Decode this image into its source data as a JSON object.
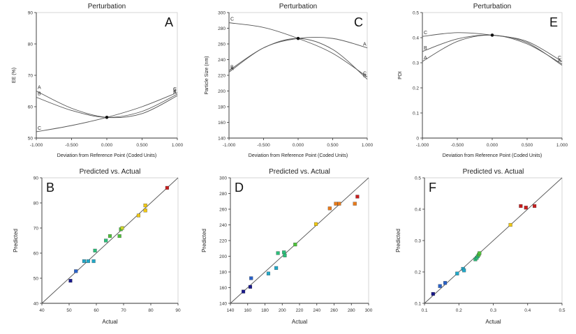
{
  "colors": {
    "axis": "#333333",
    "curve": "#555555",
    "fit_line": "#555555",
    "point_scale": [
      "#1a1a8c",
      "#2a62c8",
      "#22a8c8",
      "#2bbf7a",
      "#4ec23a",
      "#c8d22a",
      "#f0c814",
      "#e87a1a",
      "#c81e1e"
    ]
  },
  "chart_data": [
    {
      "id": "A",
      "type": "line",
      "title": "Perturbation",
      "panel_letter": "A",
      "xlabel": "Deviation from Reference Point (Coded Units)",
      "ylabel": "EE (%)",
      "xlim": [
        -1,
        1
      ],
      "ylim": [
        50,
        90
      ],
      "xticks": [
        -1,
        -0.5,
        0,
        0.5,
        1
      ],
      "xtick_labels": [
        "-1.000",
        "-0.500",
        "0.000",
        "0.500",
        "1.000"
      ],
      "yticks": [
        50,
        60,
        70,
        80,
        90
      ],
      "ytick_labels": [
        "50",
        "60",
        "70",
        "80",
        "90"
      ],
      "reference_point": [
        0,
        56.6
      ],
      "series": [
        {
          "name": "A",
          "x": [
            -1,
            -0.5,
            0,
            0.5,
            1
          ],
          "y": [
            65.0,
            59.5,
            56.6,
            57.8,
            63.5
          ]
        },
        {
          "name": "B",
          "x": [
            -1,
            -0.5,
            0,
            0.5,
            1
          ],
          "y": [
            63.0,
            58.8,
            56.6,
            58.5,
            64.0
          ]
        },
        {
          "name": "C",
          "x": [
            -1,
            -0.5,
            0,
            0.5,
            1
          ],
          "y": [
            52.0,
            54.0,
            56.6,
            60.0,
            64.5
          ]
        }
      ],
      "label_positions": [
        {
          "name": "A",
          "end": "left"
        },
        {
          "name": "B",
          "end": "left"
        },
        {
          "name": "C",
          "end": "left"
        },
        {
          "name": "C",
          "end": "right"
        },
        {
          "name": "B",
          "end": "right"
        },
        {
          "name": "A",
          "end": "right"
        }
      ]
    },
    {
      "id": "C",
      "type": "line",
      "title": "Perturbation",
      "panel_letter": "C",
      "xlabel": "Deviation from Reference Point (Coded Units)",
      "ylabel": "Particle Size (nm)",
      "xlim": [
        -1,
        1
      ],
      "ylim": [
        140,
        300
      ],
      "xticks": [
        -1,
        -0.5,
        0,
        0.5,
        1
      ],
      "xtick_labels": [
        "-1.000",
        "-0.500",
        "0.000",
        "0.500",
        "1.000"
      ],
      "yticks": [
        140,
        160,
        180,
        200,
        220,
        240,
        260,
        280,
        300
      ],
      "ytick_labels": [
        "140",
        "160",
        "180",
        "200",
        "220",
        "240",
        "260",
        "280",
        "300"
      ],
      "reference_point": [
        0,
        267
      ],
      "series": [
        {
          "name": "A",
          "x": [
            -1,
            -0.5,
            0,
            0.5,
            1
          ],
          "y": [
            224,
            255,
            267,
            267,
            255
          ]
        },
        {
          "name": "B",
          "x": [
            -1,
            -0.5,
            0,
            0.5,
            1
          ],
          "y": [
            226,
            255,
            267,
            253,
            215
          ]
        },
        {
          "name": "C",
          "x": [
            -1,
            -0.5,
            0,
            0.5,
            1
          ],
          "y": [
            287,
            281,
            267,
            248,
            218
          ]
        }
      ],
      "label_positions": [
        {
          "name": "C",
          "end": "left"
        },
        {
          "name": "B",
          "end": "left"
        },
        {
          "name": "A",
          "end": "left"
        },
        {
          "name": "A",
          "end": "right"
        },
        {
          "name": "C",
          "end": "right"
        },
        {
          "name": "B",
          "end": "right"
        }
      ]
    },
    {
      "id": "E",
      "type": "line",
      "title": "Perturbation",
      "panel_letter": "E",
      "xlabel": "Deviation from Reference Point (Coded Units)",
      "ylabel": "PDI",
      "xlim": [
        -1,
        1
      ],
      "ylim": [
        0.0,
        0.5
      ],
      "xticks": [
        -1,
        -0.5,
        0,
        0.5,
        1
      ],
      "xtick_labels": [
        "-1.000",
        "-0.500",
        "0.000",
        "0.500",
        "1.000"
      ],
      "yticks": [
        0.0,
        0.1,
        0.2,
        0.3,
        0.4,
        0.5
      ],
      "ytick_labels": [
        "0",
        "0.1",
        "0.2",
        "0.3",
        "0.4",
        "0.5"
      ],
      "reference_point": [
        0,
        0.41
      ],
      "series": [
        {
          "name": "A",
          "x": [
            -1,
            -0.5,
            0,
            0.5,
            1
          ],
          "y": [
            0.305,
            0.385,
            0.41,
            0.375,
            0.295
          ]
        },
        {
          "name": "B",
          "x": [
            -1,
            -0.5,
            0,
            0.5,
            1
          ],
          "y": [
            0.345,
            0.395,
            0.41,
            0.38,
            0.29
          ]
        },
        {
          "name": "C",
          "x": [
            -1,
            -0.5,
            0,
            0.5,
            1
          ],
          "y": [
            0.405,
            0.42,
            0.41,
            0.385,
            0.305
          ]
        }
      ],
      "label_positions": [
        {
          "name": "C",
          "end": "left"
        },
        {
          "name": "B",
          "end": "left"
        },
        {
          "name": "A",
          "end": "left"
        },
        {
          "name": "C",
          "end": "right"
        },
        {
          "name": "A",
          "end": "right"
        }
      ]
    },
    {
      "id": "B",
      "type": "scatter",
      "title": "Predicted vs. Actual",
      "panel_letter": "B",
      "xlabel": "Actual",
      "ylabel": "Predicted",
      "xlim": [
        40,
        90
      ],
      "ylim": [
        40,
        90
      ],
      "xticks": [
        40,
        50,
        60,
        70,
        80,
        90
      ],
      "xtick_labels": [
        "40",
        "50",
        "60",
        "70",
        "80",
        "90"
      ],
      "yticks": [
        40,
        50,
        60,
        70,
        80,
        90
      ],
      "ytick_labels": [
        "40",
        "50",
        "60",
        "70",
        "80",
        "90"
      ],
      "fit_line": [
        [
          40,
          40
        ],
        [
          90,
          90
        ]
      ],
      "points": [
        {
          "x": 50.5,
          "y": 49
        },
        {
          "x": 52.5,
          "y": 52.8
        },
        {
          "x": 55.5,
          "y": 56.8
        },
        {
          "x": 57,
          "y": 56.8
        },
        {
          "x": 59,
          "y": 56.8
        },
        {
          "x": 59.5,
          "y": 61
        },
        {
          "x": 63.5,
          "y": 65
        },
        {
          "x": 65,
          "y": 66.8
        },
        {
          "x": 68.5,
          "y": 66.8
        },
        {
          "x": 69,
          "y": 69.5
        },
        {
          "x": 69.5,
          "y": 70
        },
        {
          "x": 75.5,
          "y": 75
        },
        {
          "x": 78,
          "y": 77
        },
        {
          "x": 78,
          "y": 79
        },
        {
          "x": 86,
          "y": 86
        }
      ]
    },
    {
      "id": "D",
      "type": "scatter",
      "title": "Predicted vs. Actual",
      "panel_letter": "D",
      "xlabel": "Actual",
      "ylabel": "Predicted",
      "xlim": [
        140,
        300
      ],
      "ylim": [
        140,
        300
      ],
      "xticks": [
        140,
        160,
        180,
        200,
        220,
        240,
        260,
        280,
        300
      ],
      "xtick_labels": [
        "140",
        "160",
        "180",
        "200",
        "220",
        "240",
        "260",
        "280",
        "300"
      ],
      "yticks": [
        140,
        160,
        180,
        200,
        220,
        240,
        260,
        280,
        300
      ],
      "ytick_labels": [
        "140",
        "160",
        "180",
        "200",
        "220",
        "240",
        "260",
        "280",
        "300"
      ],
      "fit_line": [
        [
          140,
          140
        ],
        [
          300,
          300
        ]
      ],
      "points": [
        {
          "x": 155,
          "y": 155
        },
        {
          "x": 163,
          "y": 161
        },
        {
          "x": 164,
          "y": 172
        },
        {
          "x": 184,
          "y": 178
        },
        {
          "x": 193,
          "y": 185
        },
        {
          "x": 195,
          "y": 204
        },
        {
          "x": 202,
          "y": 205
        },
        {
          "x": 203,
          "y": 201
        },
        {
          "x": 215,
          "y": 215
        },
        {
          "x": 239,
          "y": 241
        },
        {
          "x": 255,
          "y": 261
        },
        {
          "x": 262,
          "y": 267
        },
        {
          "x": 266,
          "y": 267
        },
        {
          "x": 284,
          "y": 267
        },
        {
          "x": 287,
          "y": 276
        }
      ]
    },
    {
      "id": "F",
      "type": "scatter",
      "title": "Predicted vs. Actual",
      "panel_letter": "F",
      "xlabel": "Actual",
      "ylabel": "Predicted",
      "xlim": [
        0.1,
        0.5
      ],
      "ylim": [
        0.1,
        0.5
      ],
      "xticks": [
        0.1,
        0.2,
        0.3,
        0.4,
        0.5
      ],
      "xtick_labels": [
        "0.1",
        "0.2",
        "0.3",
        "0.4",
        "0.5"
      ],
      "yticks": [
        0.1,
        0.2,
        0.3,
        0.4,
        0.5
      ],
      "ytick_labels": [
        "0.1",
        "0.2",
        "0.3",
        "0.4",
        "0.5"
      ],
      "fit_line": [
        [
          0.1,
          0.1
        ],
        [
          0.5,
          0.5
        ]
      ],
      "points": [
        {
          "x": 0.125,
          "y": 0.13
        },
        {
          "x": 0.145,
          "y": 0.155
        },
        {
          "x": 0.16,
          "y": 0.165
        },
        {
          "x": 0.195,
          "y": 0.195
        },
        {
          "x": 0.212,
          "y": 0.21
        },
        {
          "x": 0.215,
          "y": 0.205
        },
        {
          "x": 0.248,
          "y": 0.24
        },
        {
          "x": 0.252,
          "y": 0.245
        },
        {
          "x": 0.255,
          "y": 0.25
        },
        {
          "x": 0.258,
          "y": 0.255
        },
        {
          "x": 0.26,
          "y": 0.26
        },
        {
          "x": 0.35,
          "y": 0.35
        },
        {
          "x": 0.38,
          "y": 0.41
        },
        {
          "x": 0.395,
          "y": 0.405
        },
        {
          "x": 0.42,
          "y": 0.41
        }
      ]
    }
  ]
}
